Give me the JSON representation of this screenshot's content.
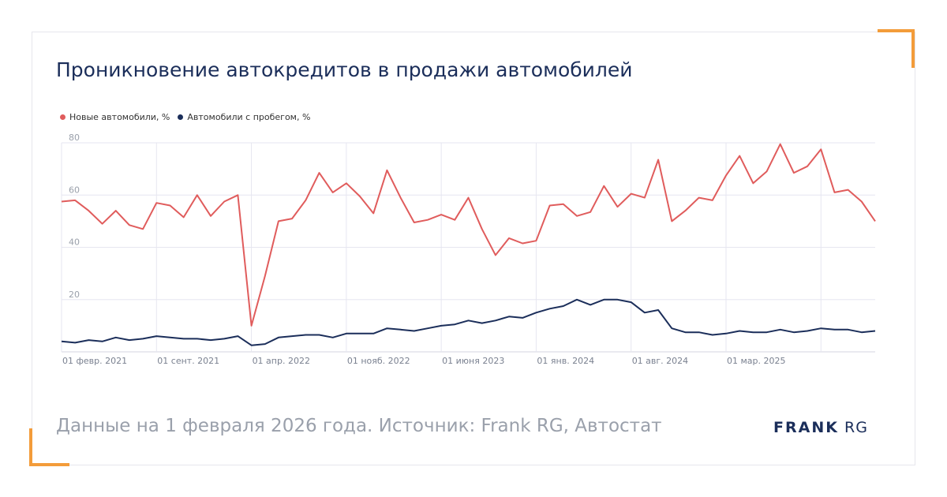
{
  "title": "Проникновение автокредитов в продажи автомобилей",
  "footer": {
    "source": "Данные на 1 февраля 2026 года. Источник: Frank RG, Автостат",
    "logo_bold": "FRANK",
    "logo_light": "RG"
  },
  "colors": {
    "accent": "#f39c3a",
    "new_series": "#e05c5c",
    "used_series": "#1b2e5a",
    "title": "#1b2e5a"
  },
  "chart_data": {
    "type": "line",
    "title": "Проникновение автокредитов в продажи автомобилей",
    "xlabel": "",
    "ylabel": "",
    "ylim": [
      0,
      80
    ],
    "yticks": [
      "20",
      "40",
      "60",
      "80"
    ],
    "grid": true,
    "legend_position": "top-left",
    "x_tick_labels": [
      "01 февр. 2021",
      "01 сент. 2021",
      "01 апр. 2022",
      "01 нояб. 2022",
      "01 июня 2023",
      "01 янв. 2024",
      "01 авг. 2024",
      "01 мар. 2025"
    ],
    "x_tick_month_index": [
      0,
      7,
      14,
      21,
      28,
      35,
      42,
      49
    ],
    "series": [
      {
        "name": "Новые автомобили, %",
        "color": "#e05c5c",
        "values": [
          57.5,
          58,
          54,
          49,
          54,
          48.5,
          47,
          57,
          56,
          51.5,
          60,
          52,
          57.5,
          60,
          10,
          29,
          50,
          51,
          58,
          68.5,
          61,
          64.5,
          59.5,
          53,
          69.5,
          59,
          49.5,
          50.5,
          52.5,
          50.5,
          59,
          47,
          37,
          43.5,
          41.5,
          42.5,
          56,
          56.5,
          52,
          53.5,
          63.5,
          55.5,
          60.5,
          59,
          73.5,
          50,
          54,
          59,
          58,
          67.5,
          75,
          64.5,
          69,
          79.5,
          68.5,
          71,
          77.5,
          61,
          62,
          57.5,
          50
        ]
      },
      {
        "name": "Автомобили с пробегом, %",
        "color": "#1b2e5a",
        "values": [
          4,
          3.5,
          4.5,
          4,
          5.5,
          4.5,
          5,
          6,
          5.5,
          5,
          5,
          4.5,
          5,
          6,
          2.5,
          3,
          5.5,
          6,
          6.5,
          6.5,
          5.5,
          7,
          7,
          7,
          9,
          8.5,
          8,
          9,
          10,
          10.5,
          12,
          11,
          12,
          13.5,
          13,
          15,
          16.5,
          17.5,
          20,
          18,
          20,
          20,
          19,
          15,
          16,
          9,
          7.5,
          7.5,
          6.5,
          7,
          8,
          7.5,
          7.5,
          8.5,
          7.5,
          8,
          9,
          8.5,
          8.5,
          7.5,
          8
        ]
      }
    ]
  }
}
